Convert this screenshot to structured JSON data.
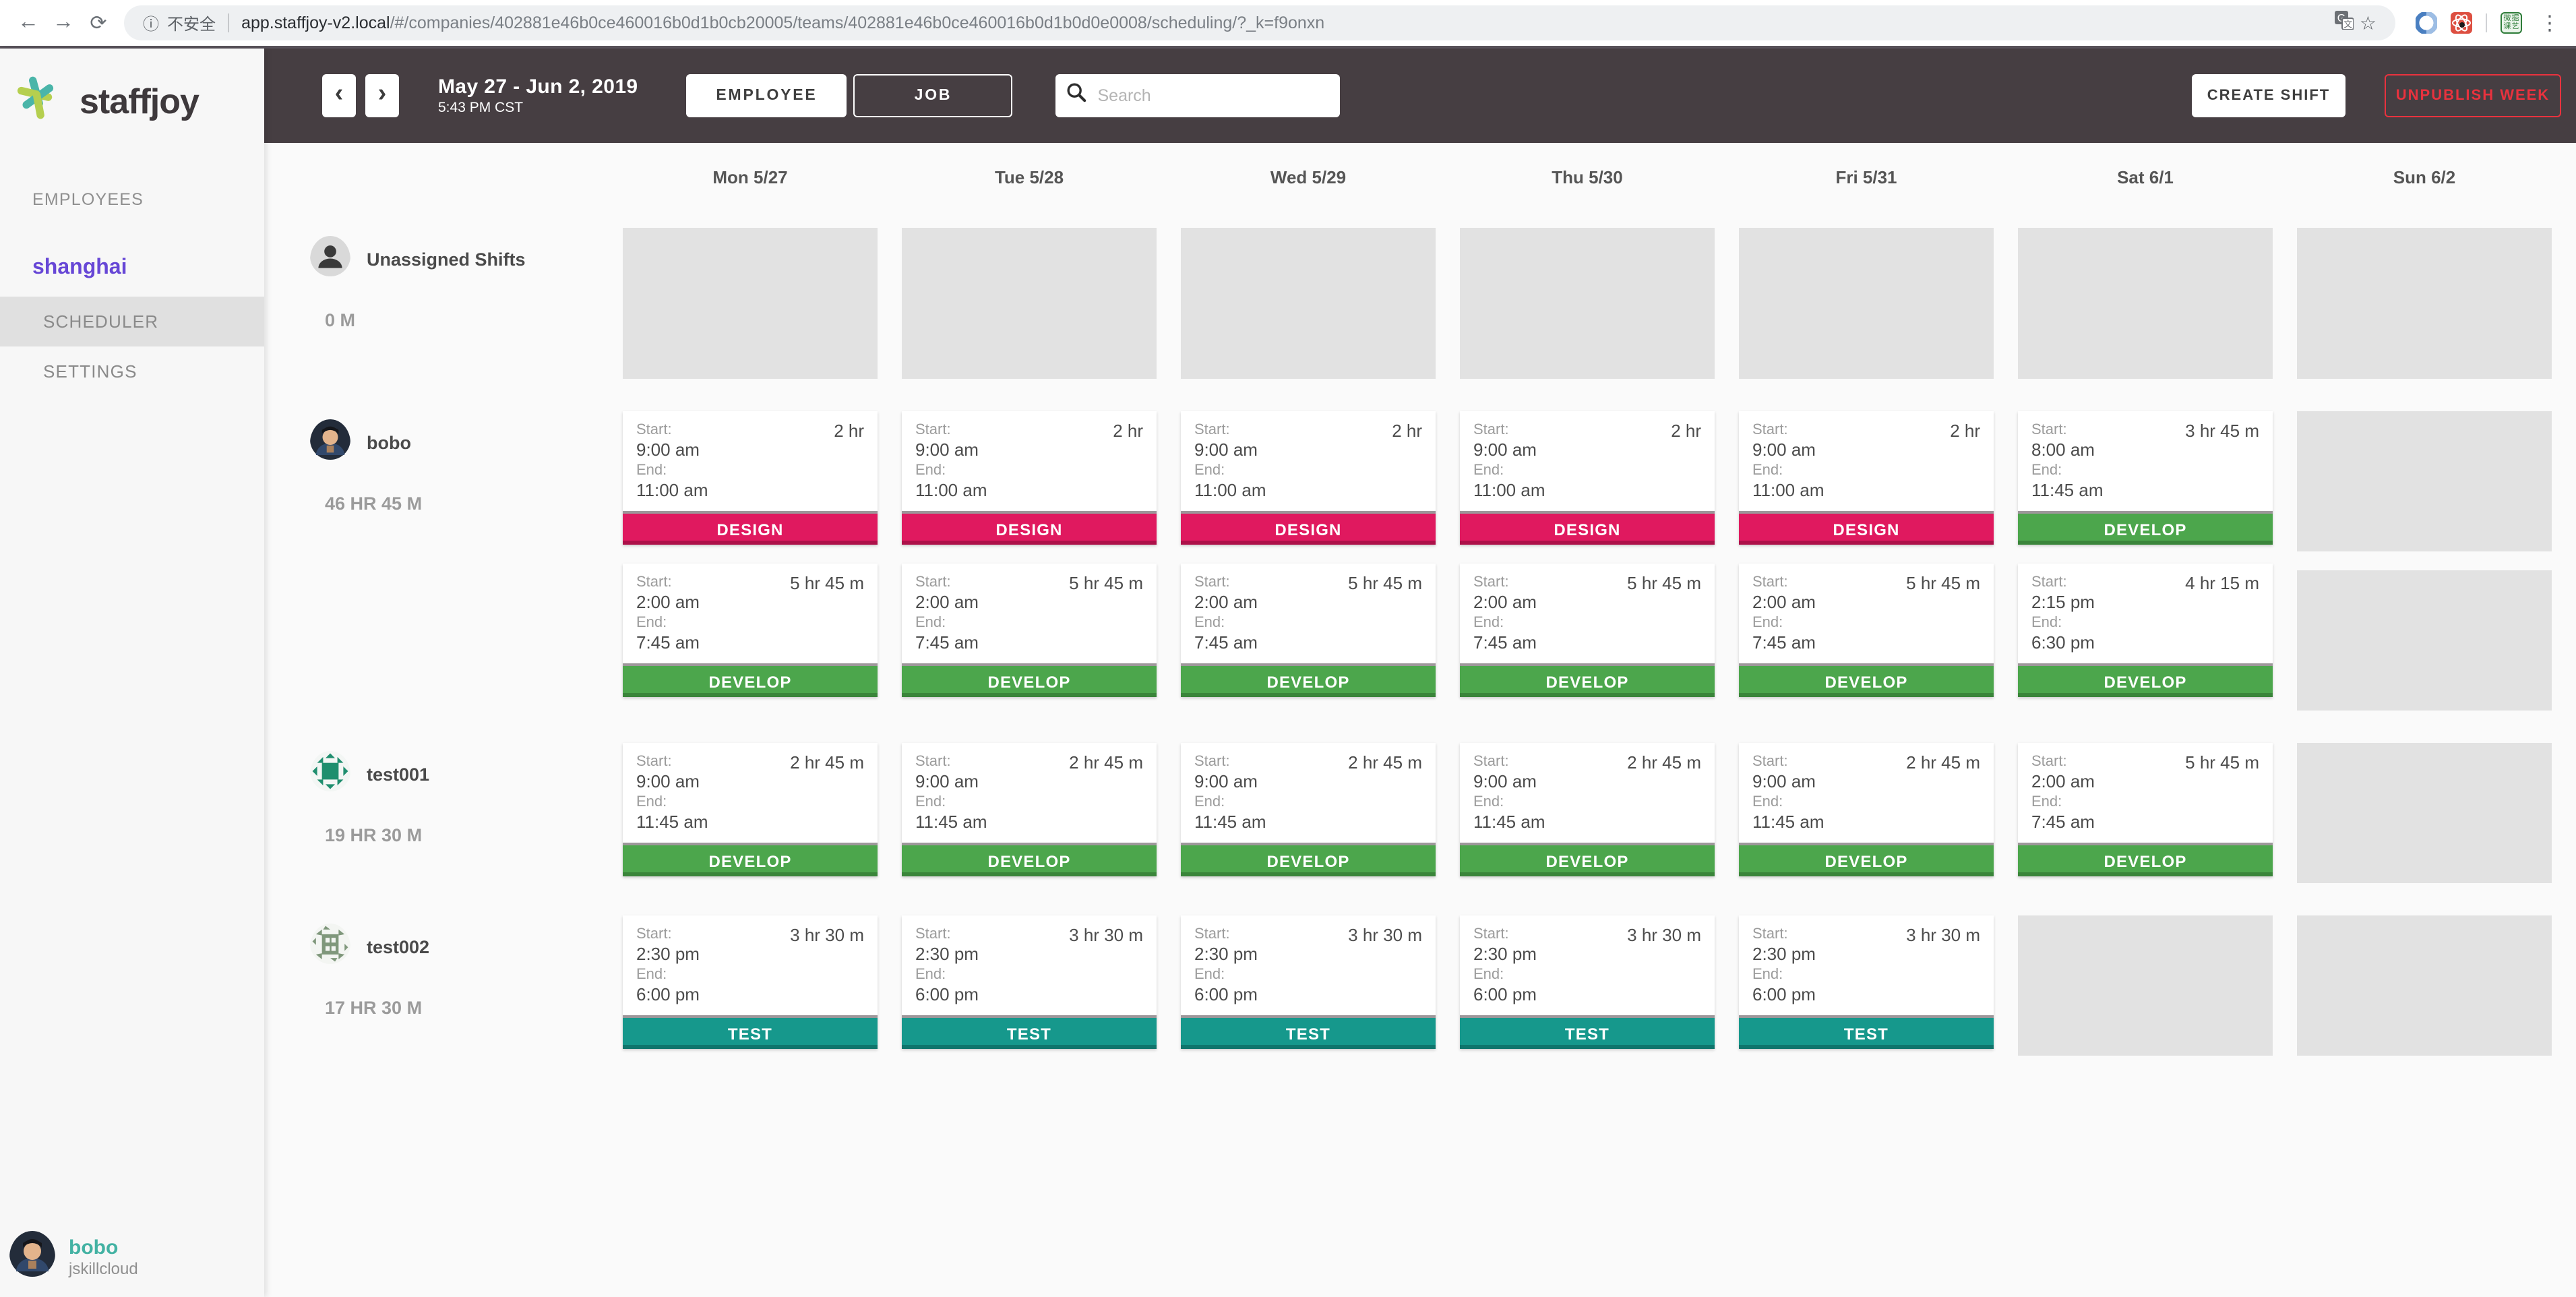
{
  "browser": {
    "security_label": "不安全",
    "url_domain": "app.staffjoy-v2.local",
    "url_path": "/#/companies/402881e46b0ce460016b0d1b0cb20005/teams/402881e46b0ce460016b0d1b0d0e0008/scheduling/?_k=f9onxn",
    "back_icon": "←",
    "forward_icon": "→",
    "reload_icon": "⟳",
    "info_icon": "ⓘ",
    "star_icon": "☆",
    "menu_icon": "⋮",
    "green_extension_chars": [
      "微",
      "掘",
      "课",
      "艺"
    ]
  },
  "sidebar": {
    "logo_text": "staffjoy",
    "employees_link": "EMPLOYEES",
    "team_name": "shanghai",
    "team_items": [
      {
        "label": "SCHEDULER",
        "active": true
      },
      {
        "label": "SETTINGS",
        "active": false
      }
    ],
    "user": {
      "name": "bobo",
      "company": "jskillcloud"
    }
  },
  "toolbar": {
    "prev_icon": "‹",
    "next_icon": "›",
    "date_range": "May 27 - Jun 2, 2019",
    "time": "5:43 PM CST",
    "employee_toggle": "EMPLOYEE",
    "job_toggle": "JOB",
    "search_placeholder": "Search",
    "create_shift": "CREATE SHIFT",
    "unpublish_week": "UNPUBLISH WEEK"
  },
  "colors": {
    "topbar_bg": "#463e42",
    "unpublish_red": "#e9323e",
    "team_purple": "#6747d6",
    "user_teal": "#43b2a3",
    "logo_teal": "#4ab5a9",
    "logo_green": "#b5cf4f",
    "empty_cell": "#e2e2e2"
  },
  "calendar": {
    "days": [
      "Mon 5/27",
      "Tue 5/28",
      "Wed 5/29",
      "Thu 5/30",
      "Fri 5/31",
      "Sat 6/1",
      "Sun 6/2"
    ],
    "card_labels": {
      "start": "Start:",
      "end": "End:"
    },
    "job_colors": {
      "DESIGN": "#e0195f",
      "DEVELOP": "#4ca64c",
      "TEST": "#16988c"
    },
    "job_shadow_colors": {
      "DESIGN": "#ad1049",
      "DEVELOP": "#3a853a",
      "TEST": "#0f756c"
    },
    "rows": [
      {
        "name": "Unassigned Shifts",
        "hours": "0 M",
        "avatar": "placeholder",
        "shift_rows": [
          [
            "empty",
            "empty",
            "empty",
            "empty",
            "empty",
            "empty",
            "empty"
          ]
        ]
      },
      {
        "name": "bobo",
        "hours": "46 HR 45 M",
        "avatar": "photo",
        "shift_rows": [
          [
            {
              "job": "DESIGN",
              "start": "9:00 am",
              "end": "11:00 am",
              "duration": "2 hr"
            },
            {
              "job": "DESIGN",
              "start": "9:00 am",
              "end": "11:00 am",
              "duration": "2 hr"
            },
            {
              "job": "DESIGN",
              "start": "9:00 am",
              "end": "11:00 am",
              "duration": "2 hr"
            },
            {
              "job": "DESIGN",
              "start": "9:00 am",
              "end": "11:00 am",
              "duration": "2 hr"
            },
            {
              "job": "DESIGN",
              "start": "9:00 am",
              "end": "11:00 am",
              "duration": "2 hr"
            },
            {
              "job": "DEVELOP",
              "start": "8:00 am",
              "end": "11:45 am",
              "duration": "3 hr 45 m"
            },
            "empty"
          ],
          [
            {
              "job": "DEVELOP",
              "start": "2:00 am",
              "end": "7:45 am",
              "duration": "5 hr 45 m"
            },
            {
              "job": "DEVELOP",
              "start": "2:00 am",
              "end": "7:45 am",
              "duration": "5 hr 45 m"
            },
            {
              "job": "DEVELOP",
              "start": "2:00 am",
              "end": "7:45 am",
              "duration": "5 hr 45 m"
            },
            {
              "job": "DEVELOP",
              "start": "2:00 am",
              "end": "7:45 am",
              "duration": "5 hr 45 m"
            },
            {
              "job": "DEVELOP",
              "start": "2:00 am",
              "end": "7:45 am",
              "duration": "5 hr 45 m"
            },
            {
              "job": "DEVELOP",
              "start": "2:15 pm",
              "end": "6:30 pm",
              "duration": "4 hr 15 m"
            },
            "empty"
          ]
        ]
      },
      {
        "name": "test001",
        "hours": "19 HR 30 M",
        "avatar": "identicon-green",
        "shift_rows": [
          [
            {
              "job": "DEVELOP",
              "start": "9:00 am",
              "end": "11:45 am",
              "duration": "2 hr 45 m"
            },
            {
              "job": "DEVELOP",
              "start": "9:00 am",
              "end": "11:45 am",
              "duration": "2 hr 45 m"
            },
            {
              "job": "DEVELOP",
              "start": "9:00 am",
              "end": "11:45 am",
              "duration": "2 hr 45 m"
            },
            {
              "job": "DEVELOP",
              "start": "9:00 am",
              "end": "11:45 am",
              "duration": "2 hr 45 m"
            },
            {
              "job": "DEVELOP",
              "start": "9:00 am",
              "end": "11:45 am",
              "duration": "2 hr 45 m"
            },
            {
              "job": "DEVELOP",
              "start": "2:00 am",
              "end": "7:45 am",
              "duration": "5 hr 45 m"
            },
            "empty"
          ]
        ]
      },
      {
        "name": "test002",
        "hours": "17 HR 30 M",
        "avatar": "identicon-sage",
        "shift_rows": [
          [
            {
              "job": "TEST",
              "start": "2:30 pm",
              "end": "6:00 pm",
              "duration": "3 hr 30 m"
            },
            {
              "job": "TEST",
              "start": "2:30 pm",
              "end": "6:00 pm",
              "duration": "3 hr 30 m"
            },
            {
              "job": "TEST",
              "start": "2:30 pm",
              "end": "6:00 pm",
              "duration": "3 hr 30 m"
            },
            {
              "job": "TEST",
              "start": "2:30 pm",
              "end": "6:00 pm",
              "duration": "3 hr 30 m"
            },
            {
              "job": "TEST",
              "start": "2:30 pm",
              "end": "6:00 pm",
              "duration": "3 hr 30 m"
            },
            "empty",
            "empty"
          ]
        ]
      }
    ]
  }
}
